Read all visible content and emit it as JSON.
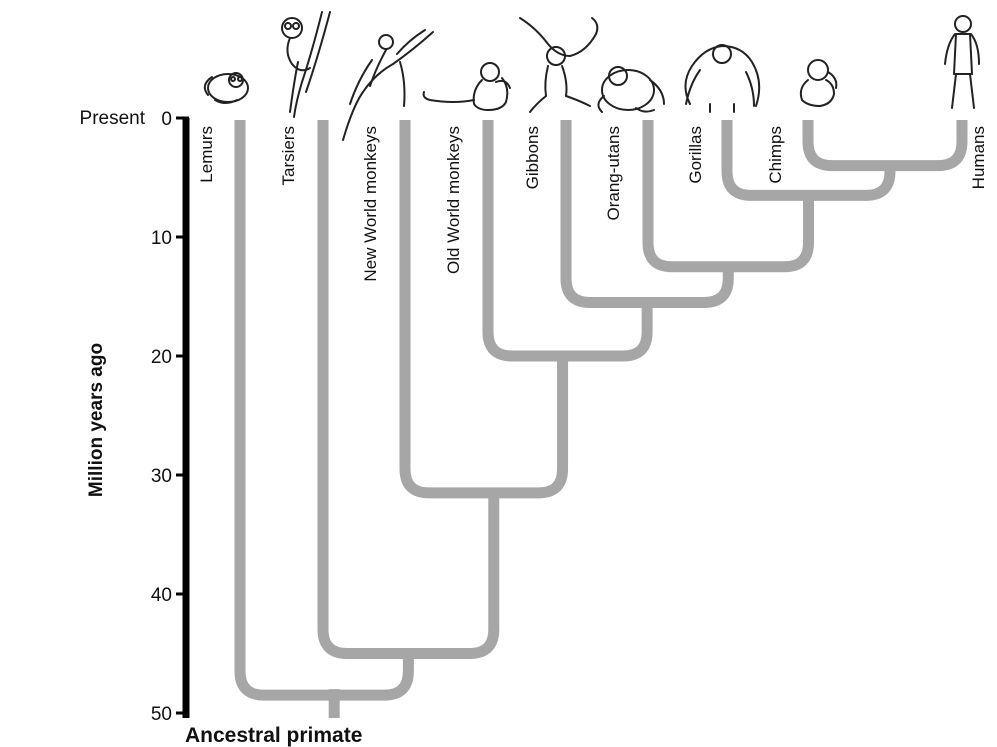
{
  "axis": {
    "title": "Million years ago",
    "present_label": "Present",
    "ticks": [
      {
        "value": 0,
        "label": "0"
      },
      {
        "value": 10,
        "label": "10"
      },
      {
        "value": 20,
        "label": "20"
      },
      {
        "value": 30,
        "label": "30"
      },
      {
        "value": 40,
        "label": "40"
      },
      {
        "value": 50,
        "label": "50"
      }
    ],
    "range": [
      0,
      50
    ]
  },
  "root_label": "Ancestral primate",
  "taxa": [
    {
      "id": "lemurs",
      "label": "Lemurs",
      "icon": "lemur-icon"
    },
    {
      "id": "tarsiers",
      "label": "Tarsiers",
      "icon": "tarsier-icon"
    },
    {
      "id": "new-world-monkeys",
      "label": "New World monkeys",
      "icon": "new-world-monkey-icon"
    },
    {
      "id": "old-world-monkeys",
      "label": "Old World monkeys",
      "icon": "old-world-monkey-icon"
    },
    {
      "id": "gibbons",
      "label": "Gibbons",
      "icon": "gibbon-icon"
    },
    {
      "id": "orang-utans",
      "label": "Orang-utans",
      "icon": "orang-utan-icon"
    },
    {
      "id": "gorillas",
      "label": "Gorillas",
      "icon": "gorilla-icon"
    },
    {
      "id": "chimps",
      "label": "Chimps",
      "icon": "chimp-icon"
    },
    {
      "id": "humans",
      "label": "Humans",
      "icon": "human-icon"
    }
  ],
  "divergences_mya": [
    {
      "clade": "Chimps + Humans",
      "mya": 4
    },
    {
      "clade": "Gorillas + (Chimps, Humans)",
      "mya": 6.5
    },
    {
      "clade": "Orang-utans + African apes",
      "mya": 12.5
    },
    {
      "clade": "Gibbons + great apes",
      "mya": 15.5
    },
    {
      "clade": "Old World monkeys + apes",
      "mya": 20
    },
    {
      "clade": "New World monkeys + Old World monkeys & apes",
      "mya": 31.5
    },
    {
      "clade": "Tarsiers + anthropoids",
      "mya": 45
    },
    {
      "clade": "Lemurs + haplorhines",
      "mya": 48.5
    }
  ],
  "colors": {
    "branch": "#a6a6a6",
    "axis": "#000000",
    "text": "#111111"
  }
}
